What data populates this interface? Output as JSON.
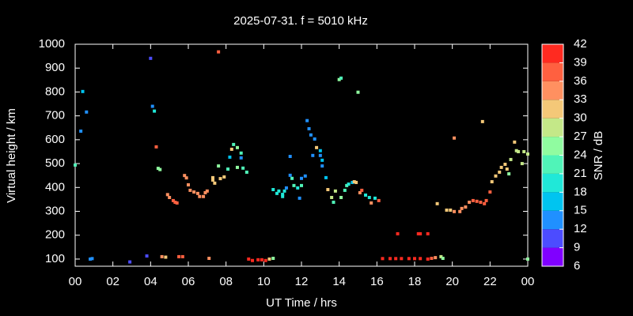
{
  "chart_data": {
    "type": "scatter",
    "title": "2025-07-31. f = 5010 kHz",
    "x_label": "UT Time / hrs",
    "y_label": "Virtual height / km",
    "xlim": [
      0,
      24
    ],
    "xticks": [
      {
        "value": 0,
        "label": "00"
      },
      {
        "value": 2,
        "label": "02"
      },
      {
        "value": 4,
        "label": "04"
      },
      {
        "value": 6,
        "label": "06"
      },
      {
        "value": 8,
        "label": "08"
      },
      10,
      12,
      14,
      16,
      18,
      20,
      22,
      {
        "value": 24,
        "label": "00"
      }
    ],
    "ylim": [
      70,
      1000
    ],
    "yticks": [
      100,
      200,
      300,
      400,
      500,
      600,
      700,
      800,
      900,
      1000
    ],
    "x": [
      0.0,
      0.4,
      0.3,
      0.6,
      0.8,
      0.9,
      2.9,
      3.8,
      4.0,
      4.1,
      4.2,
      4.3,
      4.4,
      4.5,
      4.6,
      4.8,
      4.9,
      5.0,
      5.2,
      5.3,
      5.4,
      5.5,
      5.7,
      5.8,
      5.9,
      6.0,
      6.1,
      6.3,
      6.5,
      6.6,
      6.8,
      6.9,
      7.0,
      7.1,
      7.3,
      7.4,
      7.3,
      7.6,
      7.6,
      7.7,
      7.9,
      8.1,
      8.2,
      8.3,
      8.4,
      8.6,
      8.6,
      8.8,
      8.8,
      8.9,
      9.1,
      9.2,
      9.4,
      9.7,
      9.9,
      10.1,
      10.3,
      10.5,
      10.5,
      10.7,
      10.8,
      11.0,
      11.0,
      11.1,
      11.2,
      11.4,
      11.4,
      11.5,
      11.6,
      11.8,
      11.9,
      12.0,
      12.0,
      12.2,
      12.3,
      12.4,
      12.5,
      12.7,
      12.6,
      12.8,
      13.0,
      13.0,
      13.1,
      13.1,
      13.3,
      13.4,
      13.6,
      13.7,
      13.8,
      14.0,
      14.1,
      14.1,
      14.3,
      14.4,
      14.5,
      14.7,
      14.8,
      14.9,
      15.0,
      15.1,
      15.2,
      15.4,
      15.6,
      15.7,
      15.9,
      16.1,
      16.3,
      16.7,
      17.0,
      17.3,
      17.7,
      18.0,
      18.3,
      18.7,
      17.1,
      18.2,
      18.3,
      18.7,
      18.9,
      19.1,
      19.4,
      19.5,
      19.2,
      19.7,
      19.9,
      20.1,
      20.4,
      20.5,
      20.7,
      20.9,
      21.1,
      21.3,
      21.5,
      21.7,
      20.1,
      21.6,
      21.8,
      22.0,
      22.1,
      22.3,
      22.5,
      22.6,
      22.8,
      22.9,
      23.0,
      23.1,
      23.3,
      23.4,
      23.5,
      23.7,
      23.8,
      24.0,
      24.0
    ],
    "values": [
      494,
      802,
      636,
      716,
      100,
      102,
      88,
      113,
      941,
      740,
      720,
      570,
      480,
      475,
      110,
      108,
      370,
      358,
      345,
      338,
      335,
      110,
      110,
      450,
      440,
      411,
      388,
      381,
      375,
      362,
      362,
      378,
      385,
      103,
      431,
      418,
      441,
      968,
      490,
      437,
      444,
      477,
      527,
      560,
      580,
      567,
      484,
      544,
      524,
      481,
      464,
      100,
      94,
      97,
      97,
      94,
      100,
      103,
      391,
      375,
      385,
      371,
      362,
      385,
      398,
      530,
      451,
      438,
      408,
      398,
      355,
      438,
      408,
      448,
      680,
      646,
      620,
      603,
      534,
      567,
      534,
      554,
      514,
      490,
      441,
      391,
      358,
      338,
      385,
      852,
      858,
      358,
      388,
      408,
      414,
      421,
      424,
      421,
      799,
      378,
      388,
      368,
      358,
      335,
      355,
      345,
      102,
      102,
      102,
      102,
      102,
      102,
      102,
      100,
      206,
      206,
      206,
      206,
      103,
      106,
      110,
      103,
      332,
      305,
      305,
      299,
      299,
      312,
      318,
      338,
      345,
      342,
      338,
      332,
      607,
      676,
      345,
      381,
      424,
      448,
      464,
      484,
      497,
      477,
      457,
      517,
      590,
      554,
      550,
      500,
      550,
      540,
      100
    ],
    "snr": [
      22,
      15,
      12,
      12,
      12,
      12,
      9,
      9,
      9,
      12,
      18,
      36,
      24,
      24,
      33,
      30,
      33,
      33,
      36,
      36,
      36,
      36,
      36,
      33,
      33,
      33,
      33,
      33,
      33,
      33,
      33,
      33,
      33,
      33,
      30,
      30,
      30,
      36,
      24,
      30,
      30,
      21,
      15,
      30,
      21,
      24,
      24,
      21,
      12,
      21,
      21,
      39,
      42,
      39,
      39,
      42,
      30,
      24,
      18,
      18,
      18,
      18,
      18,
      18,
      12,
      12,
      12,
      21,
      21,
      18,
      12,
      12,
      21,
      12,
      12,
      12,
      12,
      12,
      12,
      30,
      12,
      15,
      15,
      12,
      15,
      30,
      27,
      22,
      27,
      24,
      21,
      24,
      21,
      21,
      18,
      15,
      30,
      30,
      24,
      33,
      36,
      18,
      18,
      33,
      18,
      36,
      39,
      39,
      42,
      39,
      39,
      42,
      39,
      42,
      42,
      42,
      42,
      42,
      36,
      33,
      27,
      24,
      30,
      30,
      30,
      33,
      33,
      33,
      33,
      33,
      36,
      36,
      36,
      36,
      33,
      30,
      36,
      36,
      30,
      30,
      30,
      30,
      30,
      30,
      24,
      27,
      30,
      27,
      27,
      27,
      27,
      27,
      24
    ],
    "colorbar": {
      "label": "SNR / dB",
      "lim": [
        6,
        42
      ],
      "ticks": [
        6,
        9,
        12,
        15,
        18,
        21,
        24,
        27,
        30,
        33,
        36,
        39,
        42
      ],
      "colors": [
        "#8000ff",
        "#4c4cff",
        "#2090ff",
        "#00c4f0",
        "#20e8d8",
        "#50f4b8",
        "#90fca0",
        "#c4e888",
        "#f4c878",
        "#ff9060",
        "#ff6040",
        "#ff2a20"
      ]
    }
  }
}
